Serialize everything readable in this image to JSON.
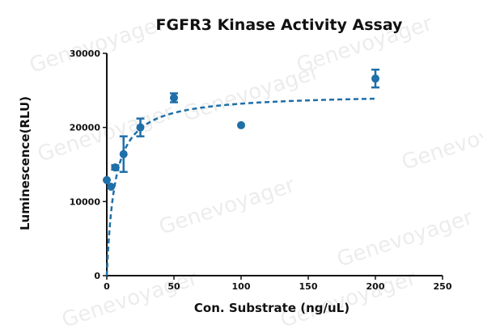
{
  "watermark": "Genevoyager",
  "chart_data": {
    "type": "scatter",
    "title": "FGFR3 Kinase Activity Assay",
    "xlabel": "Con. Substrate  (ng/uL)",
    "ylabel": "Luminescence(RLU)",
    "xlim": [
      0,
      250
    ],
    "ylim": [
      0,
      30000
    ],
    "x_ticks": [
      0,
      50,
      100,
      150,
      200,
      250
    ],
    "y_ticks": [
      0,
      10000,
      20000,
      30000
    ],
    "grid": false,
    "color": "#1f6fa8",
    "series": [
      {
        "points": [
          {
            "x": 0,
            "y": 12900,
            "err": 0
          },
          {
            "x": 3.125,
            "y": 12000,
            "err": 0
          },
          {
            "x": 6.25,
            "y": 14600,
            "err": 300
          },
          {
            "x": 12.5,
            "y": 16400,
            "err": 2400
          },
          {
            "x": 25,
            "y": 20000,
            "err": 1200
          },
          {
            "x": 50,
            "y": 24000,
            "err": 600
          },
          {
            "x": 100,
            "y": 20300,
            "err": 0
          },
          {
            "x": 200,
            "y": 26600,
            "err": 1200
          }
        ]
      }
    ],
    "fit": {
      "model": "Michaelis-Menten",
      "style": "dashed",
      "vmax": 24600,
      "km": 6,
      "x_range": [
        0,
        200
      ]
    }
  }
}
